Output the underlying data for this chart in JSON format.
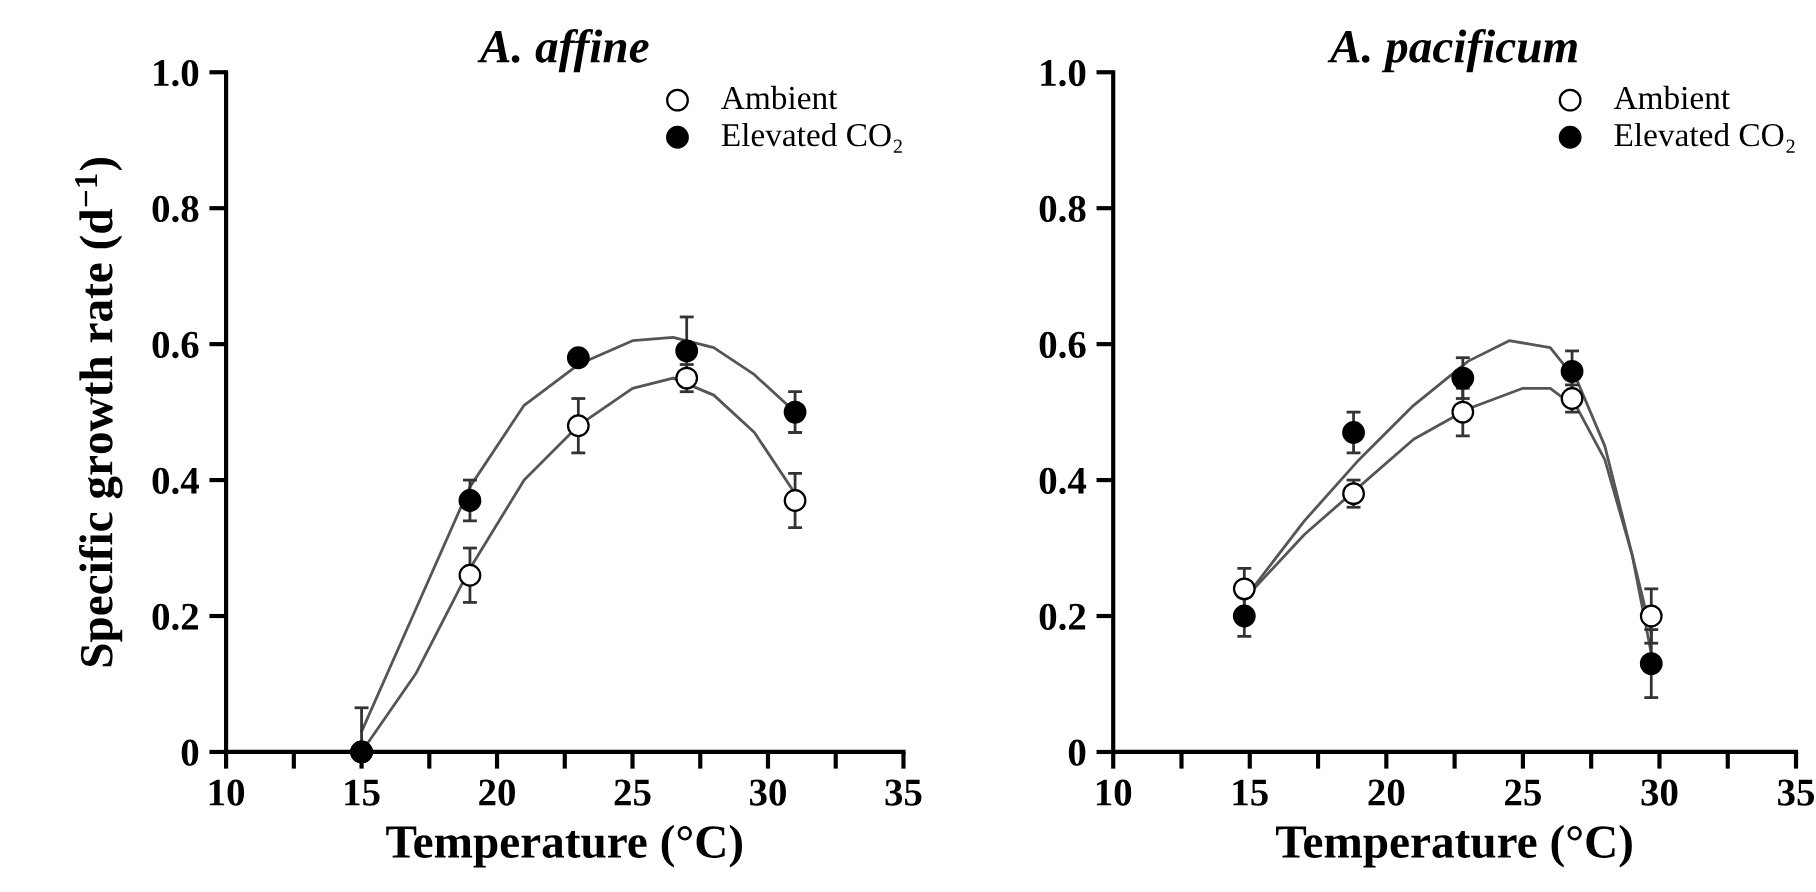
{
  "chart_data": [
    {
      "type": "scatter",
      "title": "A. affine",
      "xlabel": "Temperature (°C)",
      "ylabel": "Specific growth rate (d$^{−1}$)",
      "xlim": [
        10,
        35
      ],
      "xticks": [
        10,
        {
          "value": 12.5,
          "label": null
        },
        15,
        {
          "value": 17.5,
          "label": null
        },
        20,
        {
          "value": 22.5,
          "label": null
        },
        25,
        {
          "value": 27.5,
          "label": null
        },
        30,
        {
          "value": 32.5,
          "label": null
        },
        35
      ],
      "ylim": [
        0,
        1
      ],
      "yticks": [
        0,
        0.2,
        0.4,
        0.6,
        0.8,
        {
          "value": 1,
          "label": "1.0"
        }
      ],
      "grid": false,
      "legend": "top right",
      "series": [
        {
          "name": "Ambient",
          "marker": "circle",
          "color": "#ffffff",
          "x": [
            15,
            19,
            23,
            27,
            31
          ],
          "values": [
            0.0,
            0.26,
            0.48,
            0.55,
            0.37
          ],
          "errors": [
            0.065,
            0.04,
            0.04,
            0.02,
            0.04
          ]
        },
        {
          "name": "Elevated CO₂",
          "marker": "circle",
          "color": "#000000",
          "x": [
            15,
            19,
            23,
            27,
            31
          ],
          "values": [
            0.0,
            0.37,
            0.58,
            0.59,
            0.5
          ],
          "errors": [
            null,
            0.03,
            null,
            0.05,
            0.03
          ]
        },
        {
          "type": "line",
          "color": "#555555",
          "x": [
            15,
            17,
            19,
            21,
            23,
            25,
            26.5,
            28,
            29.5,
            31
          ],
          "values": [
            0.03,
            0.21,
            0.39,
            0.51,
            0.57,
            0.605,
            0.61,
            0.595,
            0.555,
            0.5
          ]
        },
        {
          "type": "line",
          "color": "#555555",
          "x": [
            15,
            17,
            19,
            21,
            23,
            25,
            26.5,
            28,
            29.5,
            31
          ],
          "values": [
            0.0,
            0.115,
            0.27,
            0.4,
            0.48,
            0.535,
            0.55,
            0.525,
            0.47,
            0.38
          ]
        }
      ]
    },
    {
      "type": "scatter",
      "title": "A. pacificum",
      "xlabel": "Temperature (°C)",
      "xlim": [
        10,
        35
      ],
      "xticks": [
        10,
        {
          "value": 12.5,
          "label": null
        },
        15,
        {
          "value": 17.5,
          "label": null
        },
        20,
        {
          "value": 22.5,
          "label": null
        },
        25,
        {
          "value": 27.5,
          "label": null
        },
        30,
        {
          "value": 32.5,
          "label": null
        },
        35
      ],
      "ylim": [
        0,
        1
      ],
      "yticks": [
        0,
        0.2,
        0.4,
        0.6,
        0.8,
        {
          "value": 1,
          "label": "1.0"
        }
      ],
      "grid": false,
      "legend": "top right",
      "series": [
        {
          "name": "Ambient",
          "marker": "circle",
          "color": "#ffffff",
          "x": [
            14.8,
            18.8,
            22.8,
            26.8,
            29.7
          ],
          "values": [
            0.24,
            0.38,
            0.5,
            0.52,
            0.2
          ],
          "errors": [
            0.03,
            0.02,
            0.035,
            0.02,
            0.04
          ]
        },
        {
          "name": "Elevated CO₂",
          "marker": "circle",
          "color": "#000000",
          "x": [
            14.8,
            18.8,
            22.8,
            26.8,
            29.7
          ],
          "values": [
            0.2,
            0.47,
            0.55,
            0.56,
            0.13
          ],
          "errors": [
            0.03,
            0.03,
            0.03,
            0.03,
            0.05
          ]
        },
        {
          "type": "line",
          "color": "#555555",
          "x": [
            14.8,
            17,
            19,
            21,
            23,
            24.5,
            26,
            27,
            28,
            29,
            29.7
          ],
          "values": [
            0.225,
            0.34,
            0.43,
            0.51,
            0.575,
            0.605,
            0.595,
            0.545,
            0.45,
            0.29,
            0.145
          ]
        },
        {
          "type": "line",
          "color": "#555555",
          "x": [
            14.8,
            17,
            19,
            21,
            23,
            25,
            26,
            27,
            28,
            29,
            29.7
          ],
          "values": [
            0.225,
            0.32,
            0.39,
            0.46,
            0.505,
            0.535,
            0.535,
            0.505,
            0.43,
            0.29,
            0.175
          ]
        }
      ]
    }
  ]
}
